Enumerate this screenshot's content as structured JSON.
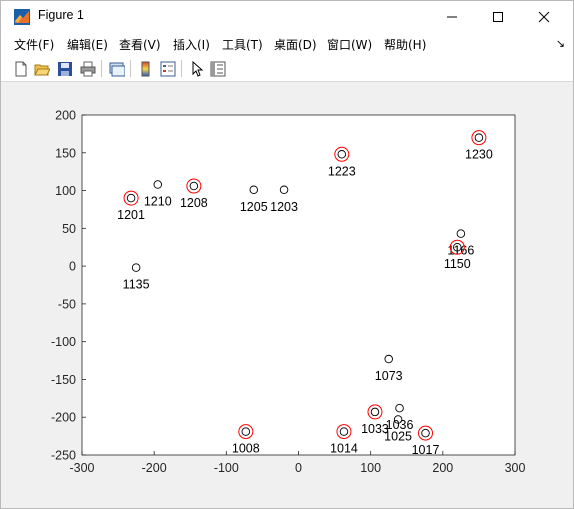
{
  "window": {
    "title": "Figure 1",
    "minimize_label": "—",
    "maximize_label": "☐",
    "close_label": "✕"
  },
  "menu": {
    "items": [
      {
        "label": "文件(F)",
        "name": "menu-file"
      },
      {
        "label": "编辑(E)",
        "name": "menu-edit"
      },
      {
        "label": "查看(V)",
        "name": "menu-view"
      },
      {
        "label": "插入(I)",
        "name": "menu-insert"
      },
      {
        "label": "工具(T)",
        "name": "menu-tools"
      },
      {
        "label": "桌面(D)",
        "name": "menu-desktop"
      },
      {
        "label": "窗口(W)",
        "name": "menu-window"
      },
      {
        "label": "帮助(H)",
        "name": "menu-help"
      }
    ],
    "overflow_arrow": "↘"
  },
  "toolbar": {
    "icons": [
      "new-figure-icon",
      "open-file-icon",
      "save-icon",
      "print-icon",
      "link-plot-icon",
      "colorbar-icon",
      "legend-icon",
      "pointer-icon",
      "property-inspector-icon"
    ]
  },
  "colors": {
    "marker": "#000000",
    "highlight": "#ff0000"
  },
  "chart_data": {
    "type": "scatter",
    "title": "",
    "xlabel": "",
    "ylabel": "",
    "xlim": [
      -300,
      300
    ],
    "ylim": [
      -250,
      200
    ],
    "xticks": [
      -300,
      -200,
      -100,
      0,
      100,
      200,
      300
    ],
    "yticks": [
      200,
      150,
      100,
      50,
      0,
      -50,
      -100,
      -150,
      -200,
      -250
    ],
    "grid": false,
    "points": [
      {
        "label": "1201",
        "x": -232,
        "y": 90,
        "highlight": true
      },
      {
        "label": "1210",
        "x": -195,
        "y": 108,
        "highlight": false
      },
      {
        "label": "1208",
        "x": -145,
        "y": 106,
        "highlight": true
      },
      {
        "label": "1205",
        "x": -62,
        "y": 101,
        "highlight": false
      },
      {
        "label": "1203",
        "x": -20,
        "y": 101,
        "highlight": false
      },
      {
        "label": "1223",
        "x": 60,
        "y": 148,
        "highlight": true
      },
      {
        "label": "1230",
        "x": 250,
        "y": 170,
        "highlight": true
      },
      {
        "label": "1166",
        "x": 225,
        "y": 43,
        "highlight": false
      },
      {
        "label": "1150",
        "x": 220,
        "y": 25,
        "highlight": true
      },
      {
        "label": "1135",
        "x": -225,
        "y": -2,
        "highlight": false
      },
      {
        "label": "1073",
        "x": 125,
        "y": -123,
        "highlight": false
      },
      {
        "label": "1036",
        "x": 140,
        "y": -188,
        "highlight": false
      },
      {
        "label": "1033",
        "x": 106,
        "y": -193,
        "highlight": true
      },
      {
        "label": "1025",
        "x": 138,
        "y": -203,
        "highlight": false
      },
      {
        "label": "1008",
        "x": -73,
        "y": -219,
        "highlight": true
      },
      {
        "label": "1014",
        "x": 63,
        "y": -219,
        "highlight": true
      },
      {
        "label": "1017",
        "x": 176,
        "y": -221,
        "highlight": true
      }
    ]
  }
}
